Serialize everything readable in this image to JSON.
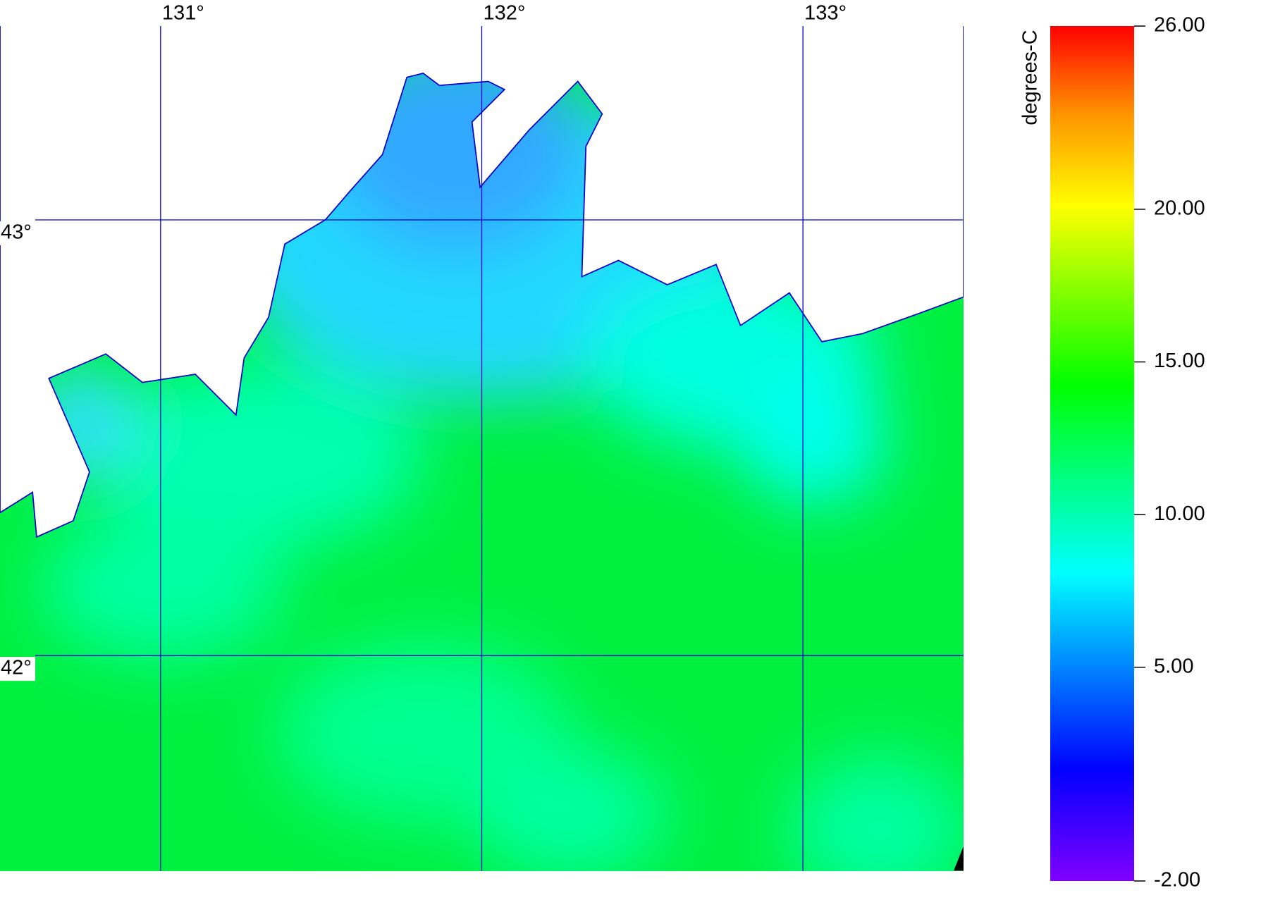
{
  "map": {
    "xlim": [
      130.5,
      133.5
    ],
    "ylim": [
      41.505,
      43.445
    ],
    "longitudes": [
      {
        "value": 131,
        "label": "131°"
      },
      {
        "value": 132,
        "label": "132°"
      },
      {
        "value": 133,
        "label": "133°"
      }
    ],
    "latitudes": [
      {
        "value": 43,
        "label": "43°"
      },
      {
        "value": 42,
        "label": "42°"
      }
    ],
    "colorbar": {
      "title": "degrees-C",
      "lim": [
        -2,
        26
      ],
      "ticks": [
        {
          "value": 26,
          "label": "26.00"
        },
        {
          "value": 20,
          "label": "20.00"
        },
        {
          "value": 15,
          "label": "15.00"
        },
        {
          "value": 10,
          "label": "10.00"
        },
        {
          "value": 5,
          "label": "5.00"
        },
        {
          "value": -2,
          "label": "-2.00"
        }
      ]
    }
  }
}
